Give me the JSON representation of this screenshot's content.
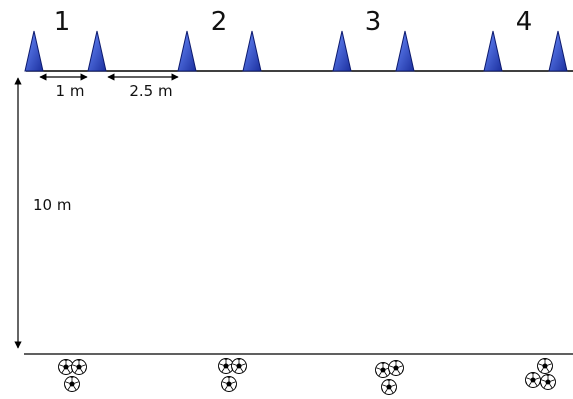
{
  "diagram": {
    "gate_numbers": [
      "1",
      "2",
      "3",
      "4"
    ],
    "labels": {
      "gap_small": "1 m",
      "gap_large": "2.5 m",
      "distance": "10 m"
    },
    "colors": {
      "cone_dark": "#1b2f9e",
      "cone_light": "#4f78ff",
      "line": "#000000"
    },
    "icons": {
      "cone": "cone-icon",
      "ball": "soccer-ball-icon"
    }
  }
}
